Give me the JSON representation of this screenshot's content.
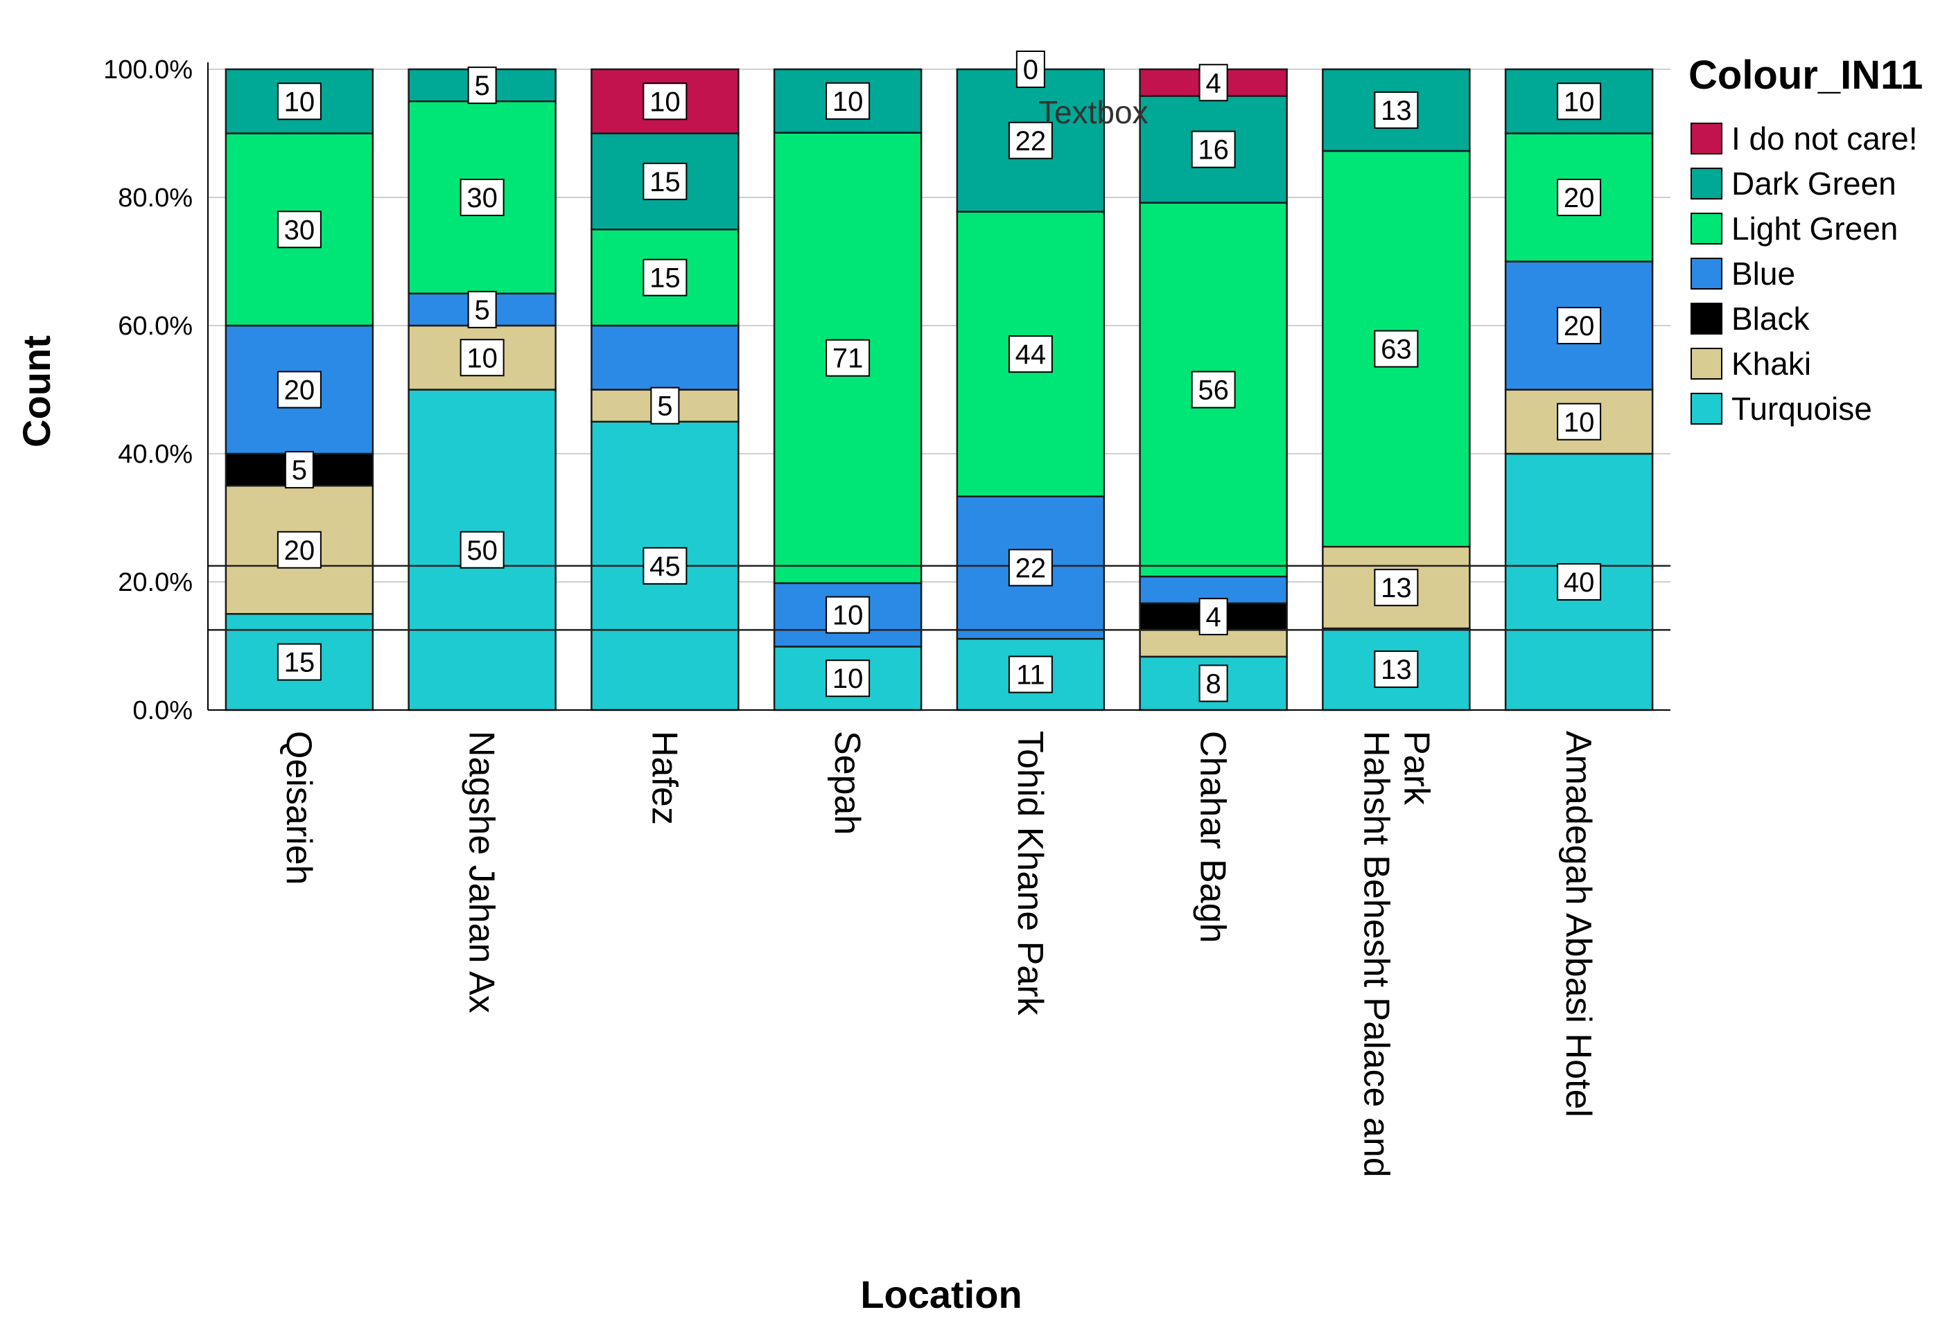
{
  "chart_data": {
    "type": "bar",
    "stacked": true,
    "percent_stacked": true,
    "xlabel": "Location",
    "ylabel": "Count",
    "ylim": [
      0,
      100
    ],
    "yticks": [
      "0.0%",
      "20.0%",
      "40.0%",
      "60.0%",
      "80.0%",
      "100.0%"
    ],
    "categories": [
      "Qeisarieh",
      "Nagshe Jahan Ax",
      "Hafez",
      "Sepah",
      "Tohid Khane Park",
      "Chahar Bagh",
      "Hahsht Behesht Palace and Park",
      "Amadegah Abbasi Hotel"
    ],
    "legend_title": "Colour_IN11",
    "legend_position": "right",
    "annotation": "Textbox",
    "series": [
      {
        "name": "Turquoise",
        "color": "#1ecbd0",
        "values": [
          15,
          50,
          45,
          10,
          11,
          8,
          13,
          40
        ]
      },
      {
        "name": "Khaki",
        "color": "#d8cc92",
        "values": [
          20,
          10,
          5,
          0,
          0,
          4,
          13,
          10
        ]
      },
      {
        "name": "Black",
        "color": "#000000",
        "values": [
          5,
          0,
          0,
          0,
          0,
          4,
          0,
          0
        ]
      },
      {
        "name": "Blue",
        "color": "#2b8ae6",
        "values": [
          20,
          5,
          10,
          10,
          22,
          4,
          0,
          20
        ]
      },
      {
        "name": "Light Green",
        "color": "#00e676",
        "values": [
          30,
          30,
          15,
          71,
          44,
          56,
          63,
          20
        ]
      },
      {
        "name": "Dark Green",
        "color": "#00a896",
        "values": [
          10,
          5,
          15,
          10,
          22,
          16,
          13,
          10
        ]
      },
      {
        "name": "I do not care!",
        "color": "#c2134e",
        "values": [
          0,
          0,
          10,
          0,
          0,
          4,
          0,
          0
        ]
      }
    ],
    "data_labels": [
      [
        15,
        20,
        5,
        20,
        30,
        10,
        null
      ],
      [
        50,
        10,
        null,
        5,
        30,
        5,
        null
      ],
      [
        45,
        5,
        null,
        null,
        15,
        15,
        10
      ],
      [
        10,
        null,
        null,
        10,
        71,
        10,
        null
      ],
      [
        11,
        null,
        null,
        22,
        44,
        22,
        0
      ],
      [
        8,
        null,
        4,
        null,
        56,
        16,
        4
      ],
      [
        13,
        13,
        null,
        null,
        63,
        13,
        null
      ],
      [
        40,
        10,
        null,
        20,
        20,
        10,
        null
      ]
    ],
    "legend_order": [
      "I do not care!",
      "Dark Green",
      "Light Green",
      "Blue",
      "Black",
      "Khaki",
      "Turquoise"
    ],
    "reference_lines_pct": [
      22.5,
      12.5
    ]
  }
}
